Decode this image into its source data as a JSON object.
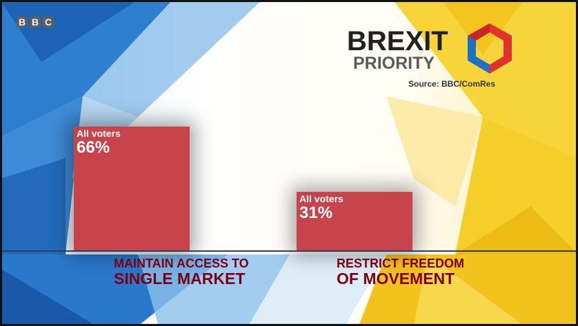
{
  "broadcaster_logo": [
    "B",
    "B",
    "C"
  ],
  "brand": {
    "title": "BREXIT",
    "subtitle": "PRIORITY",
    "source": "Source: BBC/ComRes",
    "colors": {
      "red": "#e0312e",
      "blue": "#1f6fc6",
      "dark": "#222222"
    }
  },
  "chart_data": {
    "type": "bar",
    "categories": [
      "MAINTAIN ACCESS TO SINGLE MARKET",
      "RESTRICT FREEDOM OF MOVEMENT"
    ],
    "category_lines": [
      [
        "MAINTAIN ACCESS TO",
        "SINGLE MARKET"
      ],
      [
        "RESTRICT FREEDOM",
        "OF MOVEMENT"
      ]
    ],
    "series": [
      {
        "name": "All voters",
        "values": [
          66,
          31
        ]
      }
    ],
    "value_labels": [
      "66%",
      "31%"
    ],
    "unit": "%",
    "ylim": [
      0,
      66
    ],
    "grid": false,
    "bar_color": "#c8444d"
  }
}
